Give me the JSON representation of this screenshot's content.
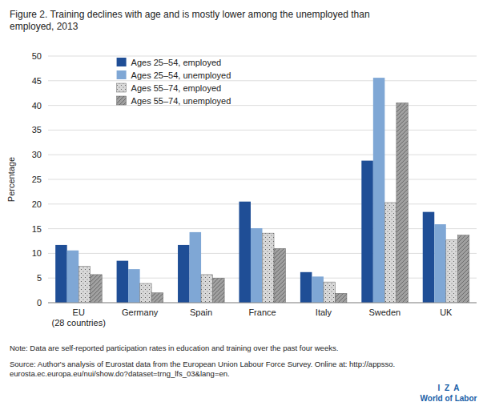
{
  "chart_data": {
    "type": "bar",
    "title": "Figure 2. Training declines with age and is mostly lower among the unemployed than\nemployed, 2013",
    "categories": [
      "EU\n(28 countries)",
      "Germany",
      "Spain",
      "France",
      "Italy",
      "Sweden",
      "UK"
    ],
    "series": [
      {
        "name": "Ages 25–54, employed",
        "color": "#1f4e96",
        "values": [
          11.7,
          8.5,
          11.7,
          20.5,
          6.2,
          28.8,
          18.4
        ]
      },
      {
        "name": "Ages 25–54, unemployed",
        "color": "#7fa7d5",
        "values": [
          10.6,
          6.8,
          14.3,
          15.1,
          5.3,
          45.6,
          15.9
        ]
      },
      {
        "name": "Ages 55–74, employed",
        "color": "#d9d9d9",
        "values": [
          7.4,
          3.9,
          5.7,
          14.1,
          4.2,
          20.3,
          12.7
        ]
      },
      {
        "name": "Ages 55–74, unemployed",
        "color": "#a0a0a0",
        "values": [
          5.7,
          2.0,
          5.0,
          11.0,
          1.9,
          40.5,
          13.7
        ]
      }
    ],
    "ylabel": "Percentage",
    "ylim": [
      0,
      50
    ],
    "yticks": [
      0,
      5,
      10,
      15,
      20,
      25,
      30,
      35,
      40,
      45,
      50
    ],
    "grid": true,
    "legend": "upper left",
    "annotations": [
      "Note: Data are self-reported participation rates in education and training over the past four weeks.",
      "Source: Author's analysis of Eurostat data from the European Union Labour Force Survey. Online at: http://appsso.\neurosta.ec.europa.eu/nui/show.do?dataset=trng_lfs_03&lang=en.",
      "I  Z  A",
      "World of Labor"
    ]
  }
}
